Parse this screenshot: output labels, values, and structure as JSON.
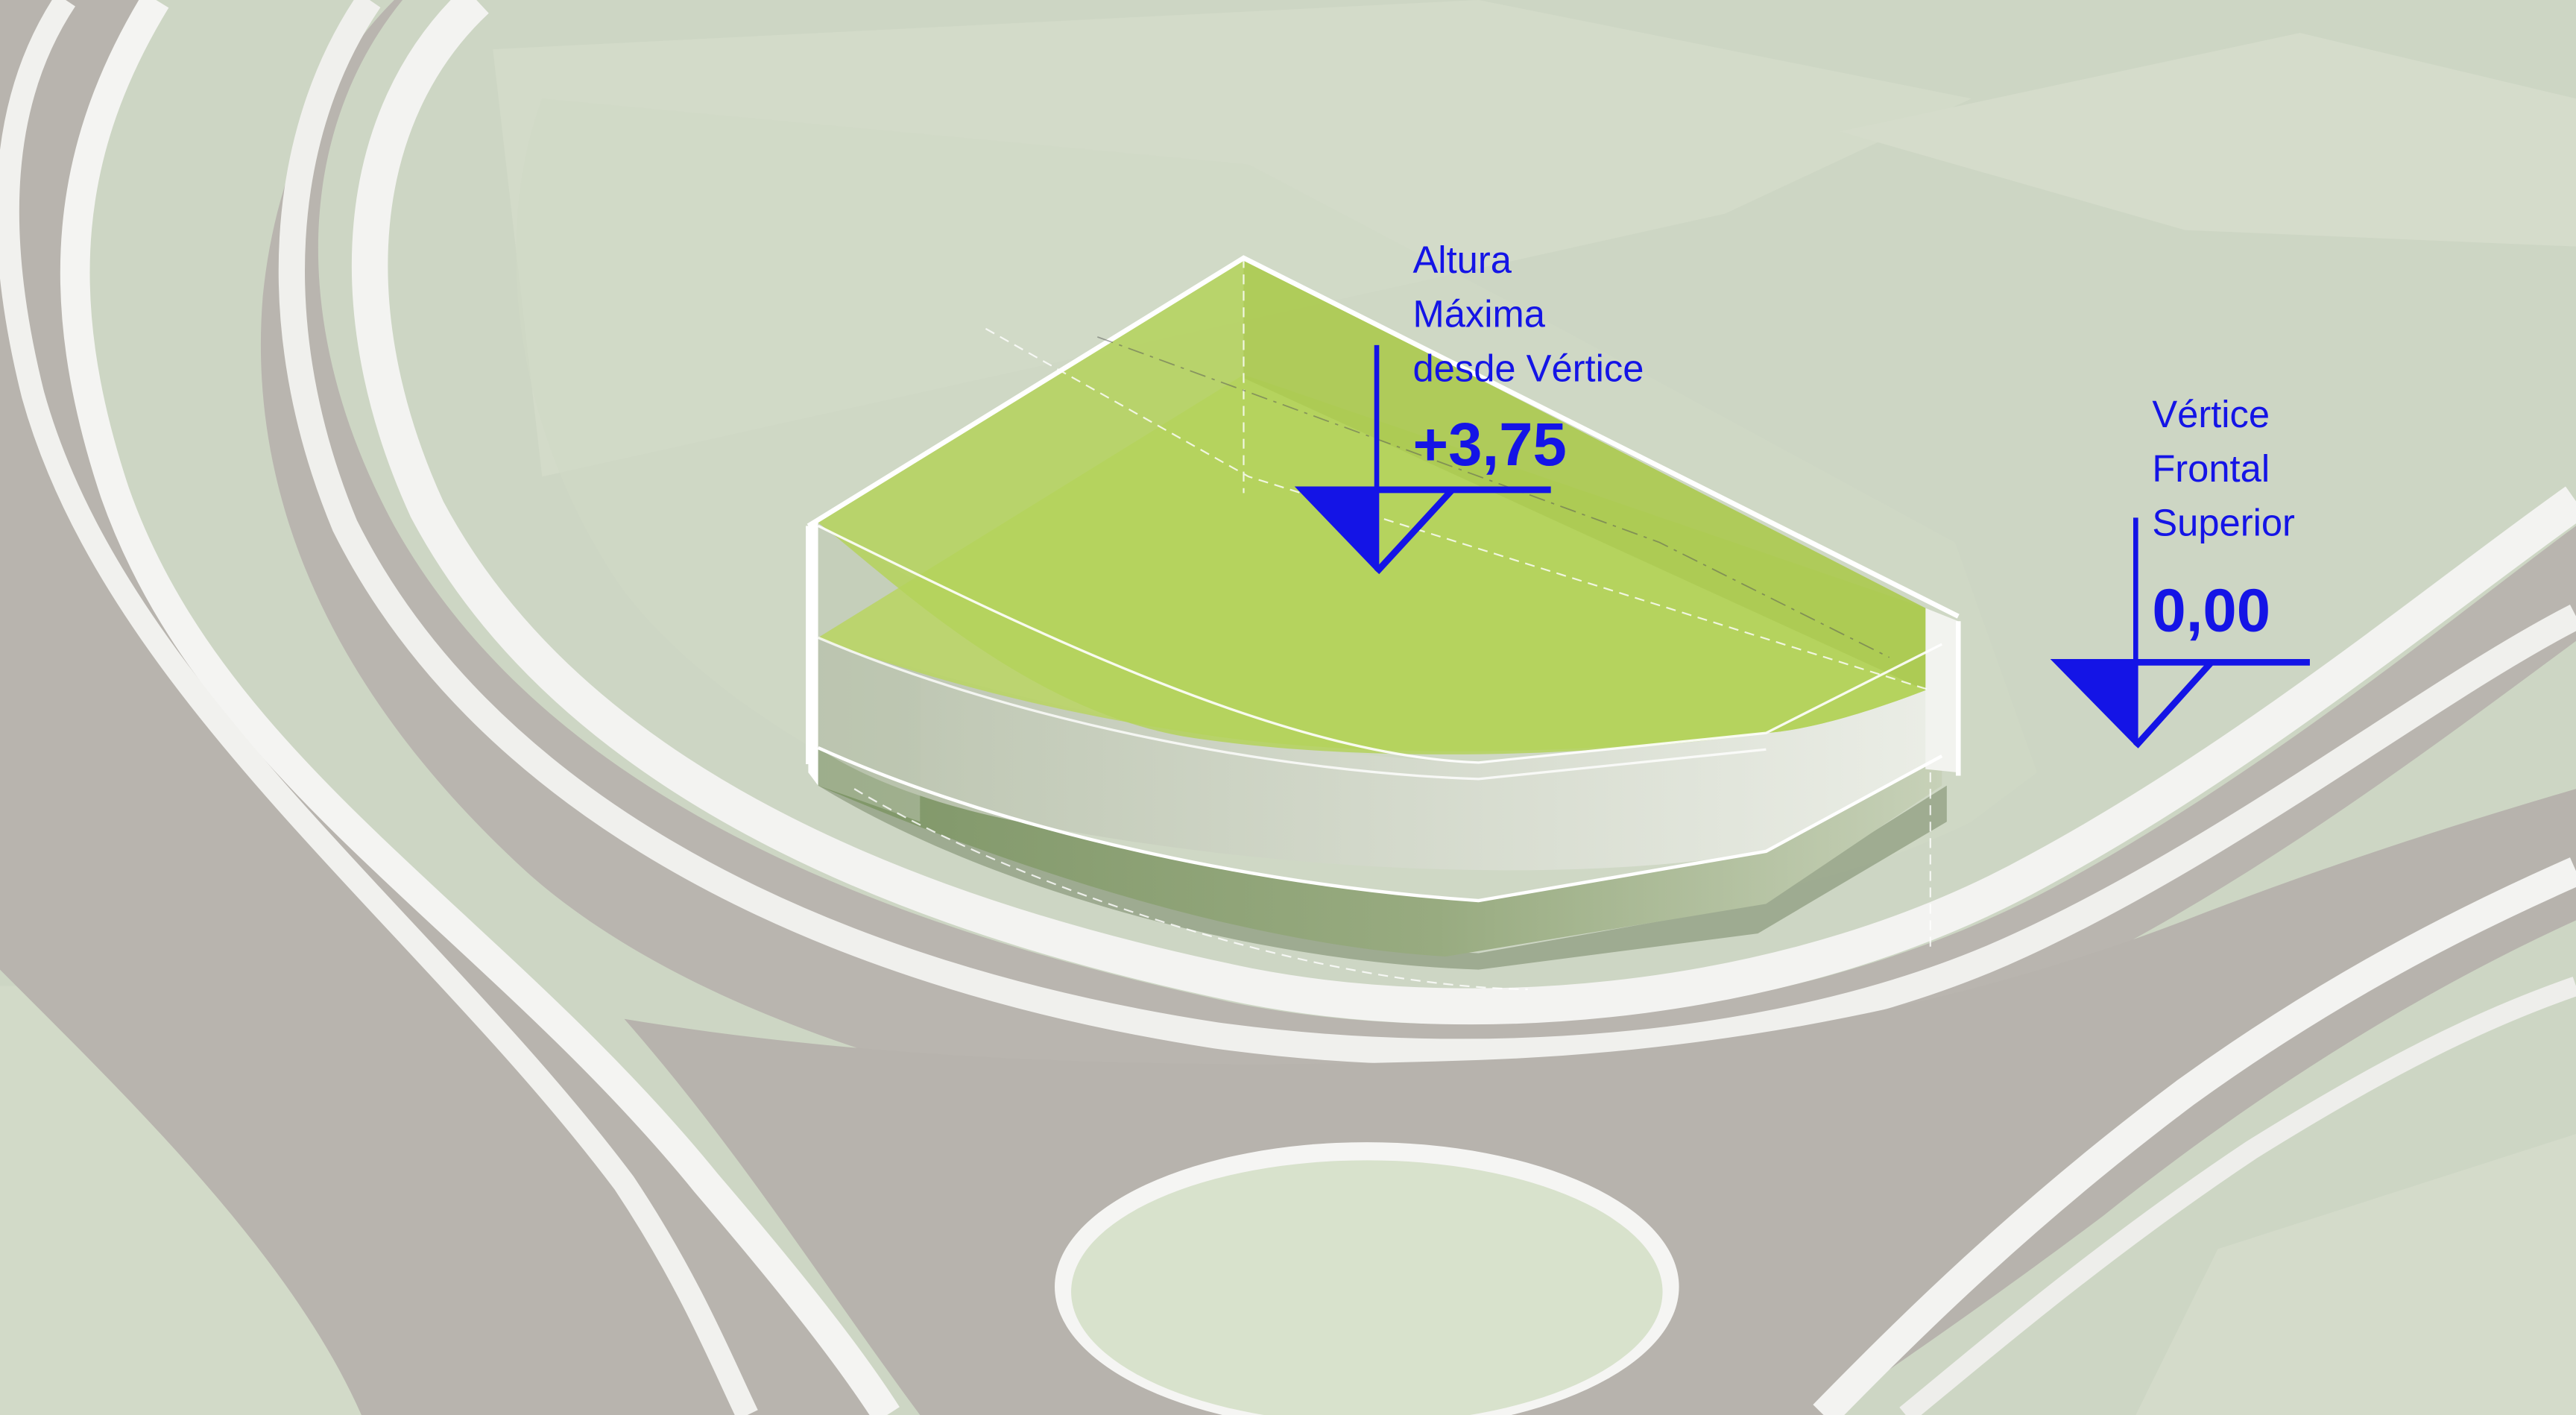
{
  "annotations": {
    "max_height": {
      "line1": "Altura",
      "line2": "Máxima",
      "line3": "desde Vértice",
      "value": "+3,75"
    },
    "reference": {
      "line1": "Vértice",
      "line2": "Frontal",
      "line3": "Superior",
      "value": "0,00"
    }
  },
  "colors": {
    "annotation": "#1414e6",
    "ground": "#cdd6c4",
    "road": "#b8b4ae",
    "curb": "#f4f4f2",
    "roof": "#b5d35c",
    "island": "#d8e2cc"
  }
}
